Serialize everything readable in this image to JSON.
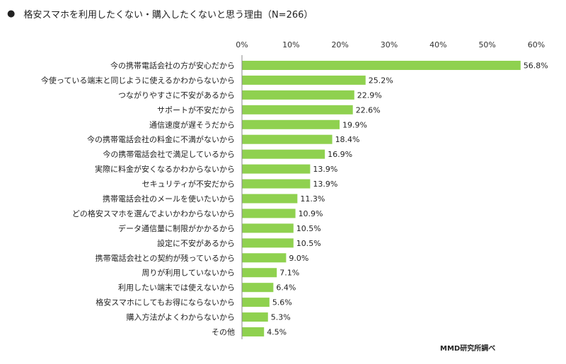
{
  "header": {
    "bullet": "●",
    "title": "格安スマホを利用したくない・購入したくないと思う理由（N=266）"
  },
  "source": "MMD研究所調べ",
  "colors": {
    "bar": "#8fd14f",
    "axis": "#888888"
  },
  "chart_data": {
    "type": "bar",
    "orientation": "horizontal",
    "title": "格安スマホを利用したくない・購入したくないと思う理由（N=266）",
    "xlim": [
      0,
      60
    ],
    "x_ticks": [
      "0%",
      "10%",
      "20%",
      "30%",
      "40%",
      "50%",
      "60%"
    ],
    "categories": [
      "今の携帯電話会社の方が安心だから",
      "今使っている端末と同じように使えるかわからないから",
      "つながりやすさに不安があるから",
      "サポートが不安だから",
      "通信速度が遅そうだから",
      "今の携帯電話会社の料金に不満がないから",
      "今の携帯電話会社で満足しているから",
      "実際に料金が安くなるかわからないから",
      "セキュリティが不安だから",
      "携帯電話会社のメールを使いたいから",
      "どの格安スマホを選んでよいかわからないから",
      "データ通信量に制限がかかるから",
      "設定に不安があるから",
      "携帯電話会社との契約が残っているから",
      "周りが利用していないから",
      "利用したい端末では使えないから",
      "格安スマホにしてもお得にならないから",
      "購入方法がよくわからないから",
      "その他"
    ],
    "values": [
      56.8,
      25.2,
      22.9,
      22.6,
      19.9,
      18.4,
      16.9,
      13.9,
      13.9,
      11.3,
      10.9,
      10.5,
      10.5,
      9.0,
      7.1,
      6.4,
      5.6,
      5.3,
      4.5
    ],
    "value_labels": [
      "56.8%",
      "25.2%",
      "22.9%",
      "22.6%",
      "19.9%",
      "18.4%",
      "16.9%",
      "13.9%",
      "13.9%",
      "11.3%",
      "10.9%",
      "10.5%",
      "10.5%",
      "9.0%",
      "7.1%",
      "6.4%",
      "5.6%",
      "5.3%",
      "4.5%"
    ],
    "grid": false,
    "legend": false
  }
}
